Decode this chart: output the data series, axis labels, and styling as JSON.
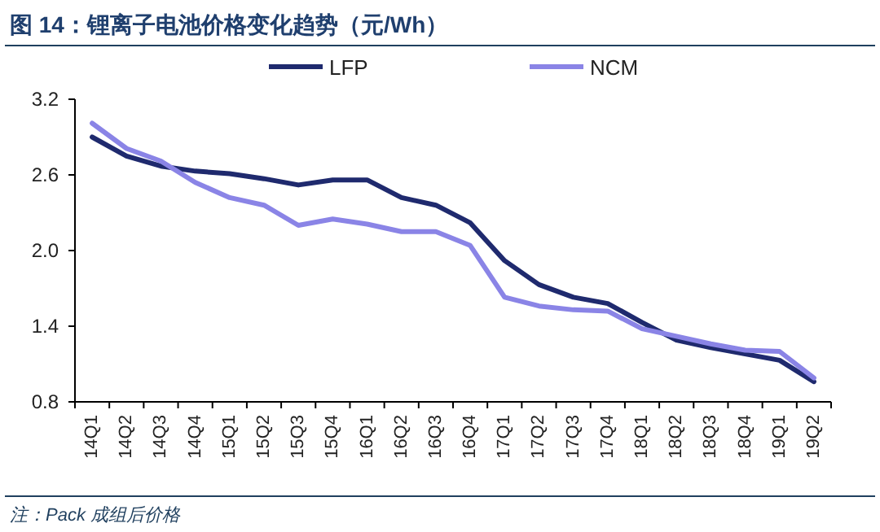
{
  "chart_data": {
    "type": "line",
    "title": "图 14：锂离子电池价格变化趋势（元/Wh）",
    "categories": [
      "14Q1",
      "14Q2",
      "14Q3",
      "14Q4",
      "15Q1",
      "15Q2",
      "15Q3",
      "15Q4",
      "16Q1",
      "16Q2",
      "16Q3",
      "16Q4",
      "17Q1",
      "17Q2",
      "17Q3",
      "17Q4",
      "18Q1",
      "18Q2",
      "18Q3",
      "18Q4",
      "19Q1",
      "19Q2"
    ],
    "series": [
      {
        "name": "LFP",
        "color": "#1f2a6e",
        "values": [
          2.9,
          2.75,
          2.67,
          2.63,
          2.61,
          2.57,
          2.52,
          2.56,
          2.56,
          2.42,
          2.36,
          2.22,
          1.92,
          1.73,
          1.63,
          1.58,
          1.43,
          1.29,
          1.23,
          1.18,
          1.13,
          0.96
        ]
      },
      {
        "name": "NCM",
        "color": "#8a84e6",
        "values": [
          3.01,
          2.81,
          2.71,
          2.54,
          2.42,
          2.36,
          2.2,
          2.25,
          2.21,
          2.15,
          2.15,
          2.04,
          1.63,
          1.56,
          1.53,
          1.52,
          1.38,
          1.32,
          1.26,
          1.21,
          1.2,
          0.99
        ]
      }
    ],
    "ylim": [
      0.8,
      3.2
    ],
    "yticks": [
      0.8,
      1.4,
      {
        "value": 2,
        "label": "2.0"
      },
      2.6,
      3.2
    ],
    "grid": false,
    "legend": "top",
    "line_style": "solid",
    "marker": "none",
    "annotations": [
      "注：Pack 成组后价格"
    ]
  }
}
